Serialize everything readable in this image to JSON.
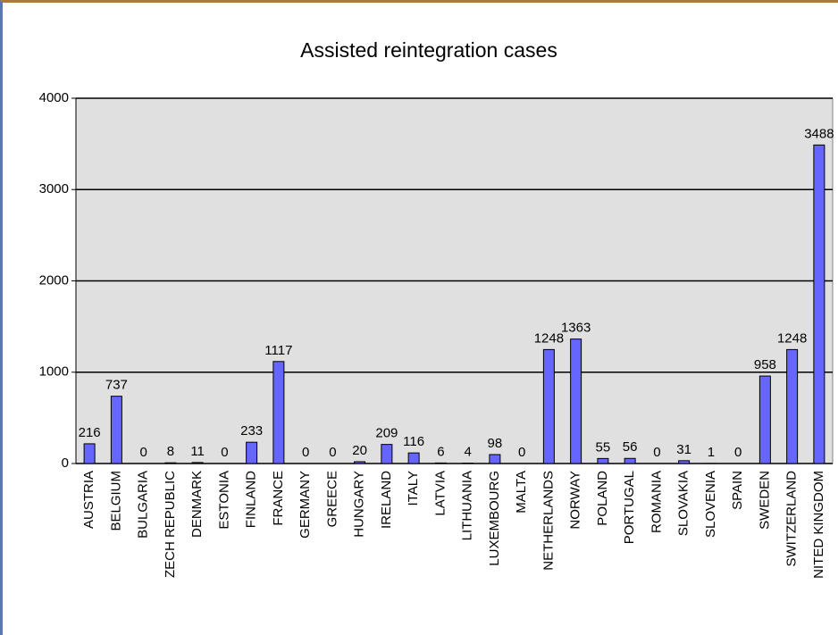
{
  "chart_data": {
    "type": "bar",
    "title": "Assisted reintegration cases",
    "categories": [
      "AUSTRIA",
      "BELGIUM",
      "BULGARIA",
      "ZECH REPUBLIC",
      "DENMARK",
      "ESTONIA",
      "FINLAND",
      "FRANCE",
      "GERMANY",
      "GREECE",
      "HUNGARY",
      "IRELAND",
      "ITALY",
      "LATVIA",
      "LITHUANIA",
      "LUXEMBOURG",
      "MALTA",
      "NETHERLANDS",
      "NORWAY",
      "POLAND",
      "PORTUGAL",
      "ROMANIA",
      "SLOVAKIA",
      "SLOVENIA",
      "SPAIN",
      "SWEDEN",
      "SWITZERLAND",
      "NITED KINGDOM"
    ],
    "values": [
      216,
      737,
      0,
      8,
      11,
      0,
      233,
      1117,
      0,
      0,
      20,
      209,
      116,
      6,
      4,
      98,
      0,
      1248,
      1363,
      55,
      56,
      0,
      31,
      1,
      0,
      958,
      1248,
      3488
    ],
    "color": "#6666ff",
    "ylim": [
      0,
      4000
    ],
    "yticks": [
      0,
      1000,
      2000,
      3000,
      4000
    ],
    "grid": true
  }
}
